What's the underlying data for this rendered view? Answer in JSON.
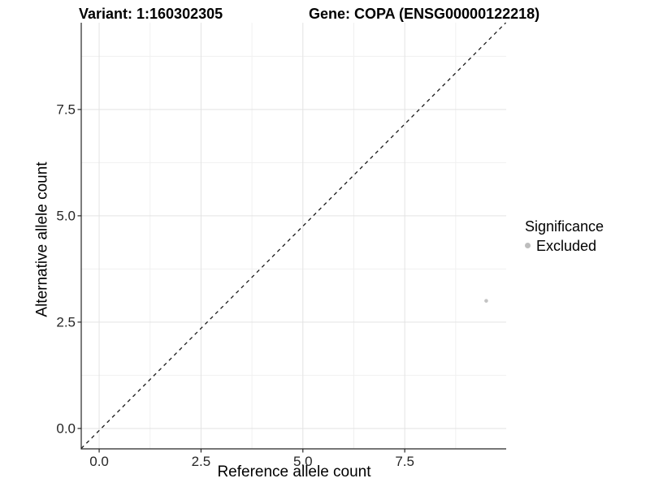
{
  "titles": {
    "variant": "Variant: 1:160302305",
    "gene": "Gene: COPA (ENSG00000122218)"
  },
  "axes": {
    "x_label": "Reference allele count",
    "y_label": "Alternative allele count",
    "x_tick_labels": [
      "0.0",
      "2.5",
      "5.0",
      "7.5"
    ],
    "y_tick_labels": [
      "0.0",
      "2.5",
      "5.0",
      "7.5"
    ]
  },
  "legend": {
    "title": "Significance",
    "items": [
      {
        "label": "Excluded",
        "color": "#bdbdbd"
      }
    ]
  },
  "chart_data": {
    "type": "scatter",
    "title": "Variant: 1:160302305 | Gene: COPA (ENSG00000122218)",
    "xlabel": "Reference allele count",
    "ylabel": "Alternative allele count",
    "xlim": [
      -0.44,
      9.99
    ],
    "ylim": [
      -0.48,
      9.54
    ],
    "x_ticks": [
      0.0,
      2.5,
      5.0,
      7.5
    ],
    "y_ticks": [
      0.0,
      2.5,
      5.0,
      7.5
    ],
    "x_minor_ticks": [
      1.25,
      3.75,
      6.25,
      8.75
    ],
    "y_minor_ticks": [
      1.25,
      3.75,
      6.25,
      8.75
    ],
    "grid": true,
    "legend_position": "right",
    "ref_line": {
      "type": "identity",
      "slope": 1,
      "intercept": 0,
      "style": "dashed",
      "color": "#1a1a1a"
    },
    "series": [
      {
        "name": "Excluded",
        "color": "#c3c3c3",
        "points": [
          {
            "x": 9.5,
            "y": 3.0
          }
        ]
      }
    ],
    "style_colors": {
      "axis_line": "#262626",
      "tick_mark": "#262626",
      "grid_major": "#e3e3e3",
      "grid_minor": "#f0f0f0",
      "background": "#ffffff"
    }
  }
}
